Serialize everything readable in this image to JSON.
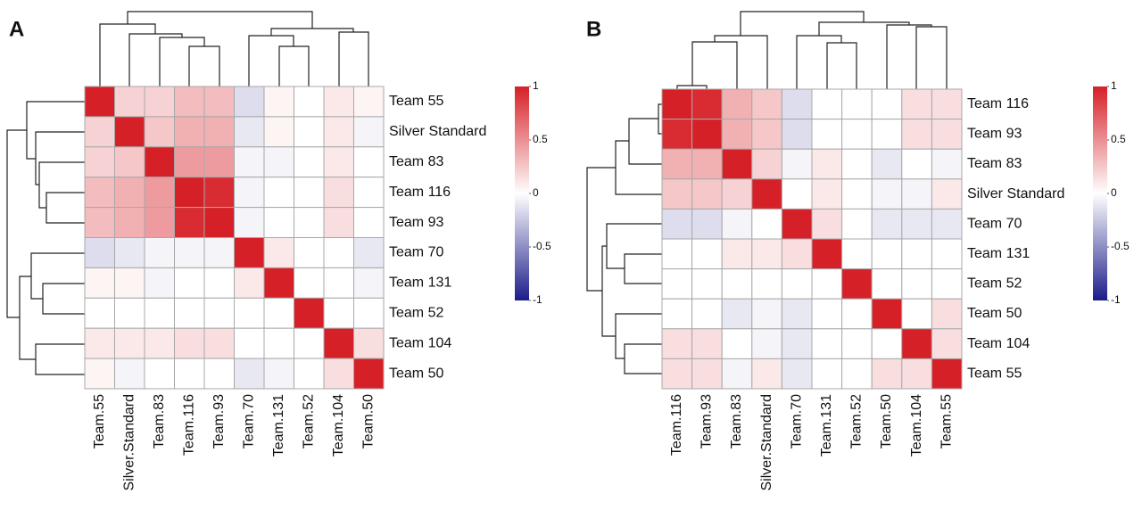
{
  "chart_data": [
    {
      "type": "heatmap",
      "label": "A",
      "x_categories": [
        "Team.55",
        "Silver.Standard",
        "Team.83",
        "Team.116",
        "Team.93",
        "Team.70",
        "Team.131",
        "Team.52",
        "Team.104",
        "Team.50"
      ],
      "y_categories": [
        "Team 55",
        "Silver Standard",
        "Team 83",
        "Team 116",
        "Team 93",
        "Team 70",
        "Team 131",
        "Team 52",
        "Team 104",
        "Team 50"
      ],
      "values": [
        [
          1,
          0.2,
          0.2,
          0.3,
          0.3,
          -0.15,
          0.05,
          0,
          0.1,
          0.05
        ],
        [
          0.2,
          1,
          0.25,
          0.35,
          0.35,
          -0.1,
          0.05,
          0,
          0.1,
          -0.05
        ],
        [
          0.2,
          0.25,
          1,
          0.45,
          0.45,
          -0.05,
          -0.05,
          0,
          0.1,
          0
        ],
        [
          0.3,
          0.35,
          0.45,
          1,
          0.95,
          -0.05,
          0,
          0,
          0.15,
          0
        ],
        [
          0.3,
          0.35,
          0.45,
          0.95,
          1,
          -0.05,
          0,
          0,
          0.15,
          0
        ],
        [
          -0.15,
          -0.1,
          -0.05,
          -0.05,
          -0.05,
          1,
          0.1,
          0,
          0,
          -0.1
        ],
        [
          0.05,
          0.05,
          -0.05,
          0,
          0,
          0.1,
          1,
          0,
          0,
          -0.05
        ],
        [
          0,
          0,
          0,
          0,
          0,
          0,
          0,
          1,
          0,
          0
        ],
        [
          0.1,
          0.1,
          0.1,
          0.15,
          0.15,
          0,
          0,
          0,
          1,
          0.15
        ],
        [
          0.05,
          -0.05,
          0,
          0,
          0,
          -0.1,
          -0.05,
          0,
          0.15,
          1
        ]
      ],
      "clim": [
        -1,
        1
      ],
      "colorbar_ticks": [
        1,
        0.5,
        0,
        -0.5,
        -1
      ],
      "colorscale": [
        "#1c1c8a",
        "#ffffff",
        "#d62027"
      ]
    },
    {
      "type": "heatmap",
      "label": "B",
      "x_categories": [
        "Team.116",
        "Team.93",
        "Team.83",
        "Silver.Standard",
        "Team.70",
        "Team.131",
        "Team.52",
        "Team.50",
        "Team.104",
        "Team.55"
      ],
      "y_categories": [
        "Team 116",
        "Team 93",
        "Team 83",
        "Silver Standard",
        "Team 70",
        "Team 131",
        "Team 52",
        "Team 50",
        "Team 104",
        "Team 55"
      ],
      "values": [
        [
          1,
          0.95,
          0.35,
          0.25,
          -0.15,
          0,
          0,
          0,
          0.15,
          0.15
        ],
        [
          0.95,
          1,
          0.35,
          0.25,
          -0.15,
          0,
          0,
          0,
          0.15,
          0.15
        ],
        [
          0.35,
          0.35,
          1,
          0.2,
          -0.05,
          0.1,
          0,
          -0.1,
          0,
          -0.05
        ],
        [
          0.25,
          0.25,
          0.2,
          1,
          0,
          0.1,
          0,
          -0.05,
          -0.05,
          0.1
        ],
        [
          -0.15,
          -0.15,
          -0.05,
          0,
          1,
          0.15,
          0,
          -0.1,
          -0.1,
          -0.1
        ],
        [
          0,
          0,
          0.1,
          0.1,
          0.15,
          1,
          0,
          0,
          0,
          0
        ],
        [
          0,
          0,
          0,
          0,
          0,
          0,
          1,
          0,
          0,
          0
        ],
        [
          0,
          0,
          -0.1,
          -0.05,
          -0.1,
          0,
          0,
          1,
          0,
          0.15
        ],
        [
          0.15,
          0.15,
          0,
          -0.05,
          -0.1,
          0,
          0,
          0,
          1,
          0.15
        ],
        [
          0.15,
          0.15,
          -0.05,
          0.1,
          -0.1,
          0,
          0,
          0.15,
          0.15,
          1
        ]
      ],
      "clim": [
        -1,
        1
      ],
      "colorbar_ticks": [
        1,
        0.5,
        0,
        -0.5,
        -1
      ],
      "colorscale": [
        "#1c1c8a",
        "#ffffff",
        "#d62027"
      ]
    }
  ]
}
